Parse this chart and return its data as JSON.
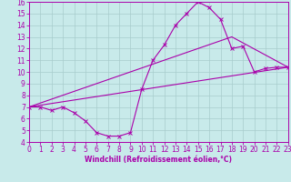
{
  "xlabel": "Windchill (Refroidissement éolien,°C)",
  "bg_color": "#c8eaea",
  "line_color": "#aa00aa",
  "grid_color": "#a8cccc",
  "xlim": [
    0,
    23
  ],
  "ylim": [
    4,
    16
  ],
  "xticks": [
    0,
    1,
    2,
    3,
    4,
    5,
    6,
    7,
    8,
    9,
    10,
    11,
    12,
    13,
    14,
    15,
    16,
    17,
    18,
    19,
    20,
    21,
    22,
    23
  ],
  "yticks": [
    4,
    5,
    6,
    7,
    8,
    9,
    10,
    11,
    12,
    13,
    14,
    15,
    16
  ],
  "line1_x": [
    0,
    1,
    2,
    3,
    4,
    5,
    6,
    7,
    8,
    9,
    10,
    11,
    12,
    13,
    14,
    15,
    16,
    17,
    18,
    19,
    20,
    21,
    22,
    23
  ],
  "line1_y": [
    7.0,
    7.0,
    6.7,
    7.0,
    6.5,
    5.8,
    4.8,
    4.5,
    4.5,
    4.8,
    8.5,
    11.0,
    12.3,
    14.0,
    15.0,
    16.0,
    15.5,
    14.5,
    12.0,
    12.2,
    10.0,
    10.3,
    10.4,
    10.4
  ],
  "line2_x": [
    0,
    18,
    23
  ],
  "line2_y": [
    7.0,
    13.0,
    10.4
  ],
  "line3_x": [
    0,
    23
  ],
  "line3_y": [
    7.0,
    10.4
  ],
  "tick_fontsize": 5.5,
  "xlabel_fontsize": 5.5
}
